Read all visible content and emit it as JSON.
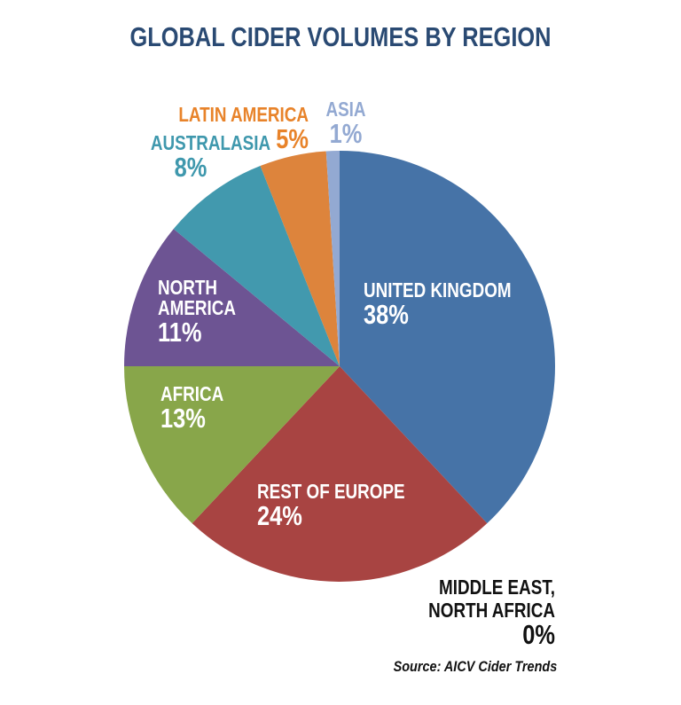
{
  "chart_data": {
    "type": "pie",
    "title": "GLOBAL CIDER VOLUMES BY REGION",
    "source": "Source: AICV Cider Trends",
    "categories": [
      "United Kingdom",
      "Rest of Europe",
      "Africa",
      "North America",
      "Australasia",
      "Latin America",
      "Asia",
      "Middle East, North Africa"
    ],
    "values": [
      38,
      24,
      13,
      11,
      8,
      5,
      1,
      0
    ],
    "unit": "%",
    "start_angle": "12 o'clock, clockwise",
    "legend": "none (direct labels)",
    "colors": [
      "#4673a7",
      "#a84442",
      "#88a64a",
      "#6d5493",
      "#4299ae",
      "#dd843c",
      "#93a9d2",
      "#000000"
    ]
  },
  "title": "GLOBAL CIDER VOLUMES BY REGION",
  "labels": {
    "uk": {
      "name": "UNITED KINGDOM",
      "pct": "38%"
    },
    "europe": {
      "name": "REST OF EUROPE",
      "pct": "24%"
    },
    "africa": {
      "name": "AFRICA",
      "pct": "13%"
    },
    "north_america": {
      "name1": "NORTH",
      "name2": "AMERICA",
      "pct": "11%"
    },
    "australasia": {
      "name": "AUSTRALASIA",
      "pct": "8%"
    },
    "latin_america": {
      "name": "LATIN AMERICA",
      "pct": "5%"
    },
    "asia": {
      "name": "ASIA",
      "pct": "1%"
    },
    "mena": {
      "name1": "MIDDLE EAST,",
      "name2": "NORTH AFRICA",
      "pct": "0%"
    }
  },
  "source": "Source: AICV Cider Trends"
}
